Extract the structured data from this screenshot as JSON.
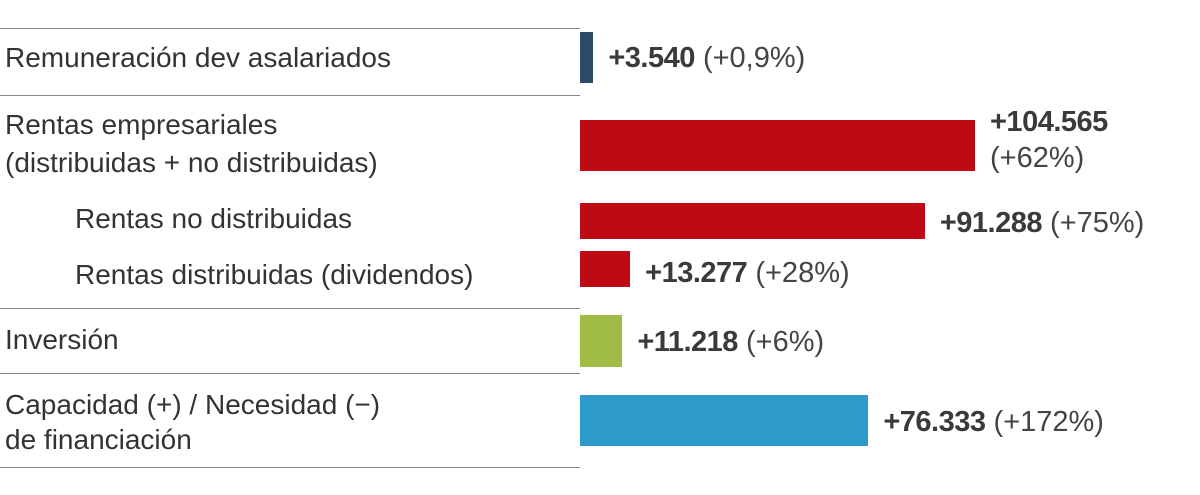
{
  "chart_data": {
    "type": "bar",
    "orientation": "horizontal",
    "categories": [
      "Remuneración dev asalariados",
      "Rentas empresariales (distribuidas + no distribuidas)",
      "Rentas no distribuidas",
      "Rentas distribuidas (dividendos)",
      "Inversión",
      "Capacidad (+) / Necesidad (−) de financiación"
    ],
    "label_lines": [
      [
        "Remuneración dev asalariados"
      ],
      [
        "Rentas empresariales",
        "(distribuidas + no distribuidas)"
      ],
      [
        "Rentas no distribuidas"
      ],
      [
        "Rentas distribuidas (dividendos)"
      ],
      [
        "Inversión"
      ],
      [
        "Capacidad (+) / Necesidad (−)",
        "de financiación"
      ]
    ],
    "values": [
      3540,
      104565,
      91288,
      13277,
      11218,
      76333
    ],
    "value_labels": [
      "+3.540",
      "+104.565",
      "+91.288",
      "+13.277",
      "+11.218",
      "+76.333"
    ],
    "pct_labels": [
      "(+0,9%)",
      "(+62%)",
      "(+75%)",
      "(+28%)",
      "(+6%)",
      "(+172%)"
    ],
    "colors": [
      "#2e4a6b",
      "#bd0a14",
      "#bd0a14",
      "#bd0a14",
      "#a0bc44",
      "#2e9ac9"
    ],
    "xlim": [
      0,
      104565
    ],
    "grid": false,
    "legend": "none"
  }
}
